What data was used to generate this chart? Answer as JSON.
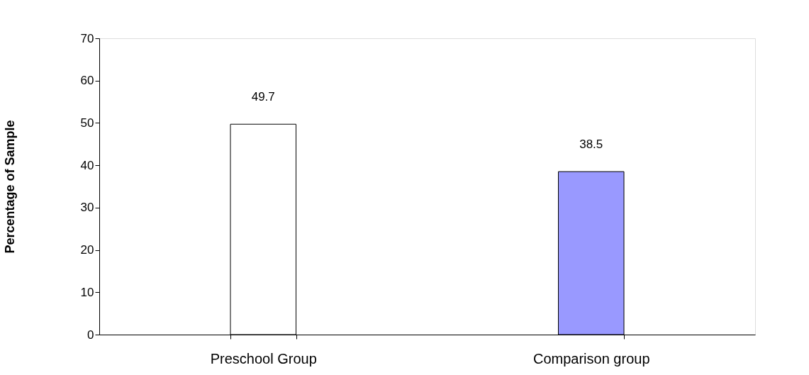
{
  "chart_data": {
    "type": "bar",
    "categories": [
      "Preschool Group",
      "Comparison group"
    ],
    "values": [
      49.7,
      38.5
    ],
    "colors": [
      "#ffffff",
      "#9999ff"
    ],
    "ylabel": "Percentage of Sample",
    "ylim": [
      0,
      70
    ],
    "yticks": [
      0,
      10,
      20,
      30,
      40,
      50,
      60,
      70
    ],
    "data_labels": true
  }
}
